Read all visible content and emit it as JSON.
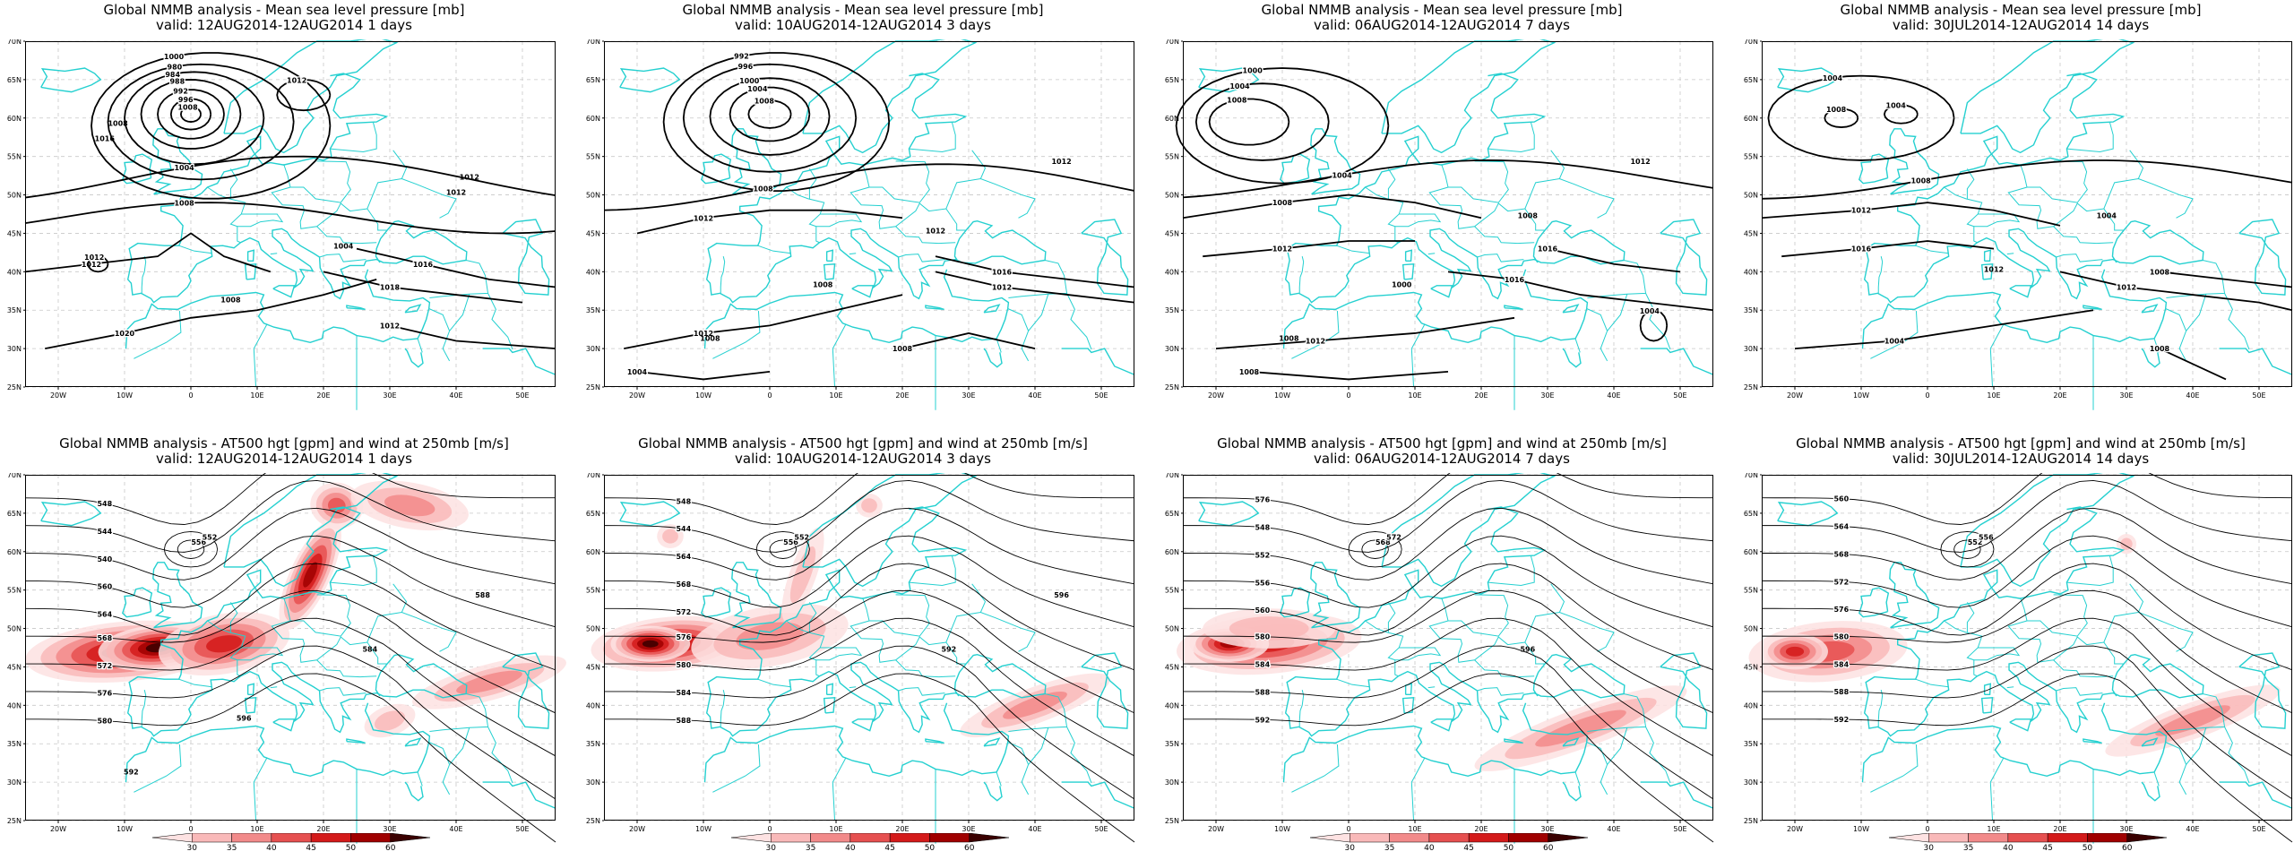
{
  "panels": [
    {
      "title": "Global NMMB analysis - Mean sea level pressure [mb]",
      "subtitle": "valid: 12AUG2014-12AUG2014   1 days",
      "contour_labels": [
        "1008",
        "996",
        "992",
        "988",
        "984",
        "980",
        "1000",
        "1004",
        "1008",
        "1012",
        "1016",
        "1018",
        "1020",
        "1012",
        "1012",
        "1012",
        "1012",
        "1008",
        "1008",
        "1004",
        "1012",
        "1016"
      ]
    },
    {
      "title": "Global NMMB analysis - Mean sea level pressure [mb]",
      "subtitle": "valid: 10AUG2014-12AUG2014   3 days",
      "contour_labels": [
        "1008",
        "1004",
        "1000",
        "996",
        "992",
        "1008",
        "1012",
        "1016",
        "1012",
        "1012",
        "1008",
        "1004",
        "1012",
        "1008",
        "1008",
        "1012"
      ]
    },
    {
      "title": "Global NMMB analysis - Mean sea level pressure [mb]",
      "subtitle": "valid: 06AUG2014-12AUG2014   7 days",
      "contour_labels": [
        "1008",
        "1004",
        "1000",
        "1004",
        "1008",
        "1012",
        "1016",
        "1016",
        "1012",
        "1008",
        "1004",
        "1008",
        "1012",
        "1008",
        "1000"
      ]
    },
    {
      "title": "Global NMMB analysis - Mean sea level pressure [mb]",
      "subtitle": "valid: 30JUL2014-12AUG2014   14 days",
      "contour_labels": [
        "1008",
        "1004",
        "1004",
        "1008",
        "1012",
        "1016",
        "1012",
        "1008",
        "1004",
        "1008",
        "1012",
        "1004"
      ]
    },
    {
      "title": "Global NMMB analysis - AT500 hgt [gpm] and wind at 250mb [m/s]",
      "subtitle": "valid: 12AUG2014-12AUG2014   1 days",
      "contour_labels": [
        "556",
        "552",
        "548",
        "544",
        "540",
        "560",
        "564",
        "568",
        "572",
        "576",
        "580",
        "584",
        "588",
        "592",
        "596"
      ]
    },
    {
      "title": "Global NMMB analysis - AT500 hgt [gpm] and wind at 250mb [m/s]",
      "subtitle": "valid: 10AUG2014-12AUG2014   3 days",
      "contour_labels": [
        "556",
        "552",
        "548",
        "544",
        "564",
        "568",
        "572",
        "576",
        "580",
        "584",
        "588",
        "592",
        "596"
      ]
    },
    {
      "title": "Global NMMB analysis - AT500 hgt [gpm] and wind at 250mb [m/s]",
      "subtitle": "valid: 06AUG2014-12AUG2014   7 days",
      "contour_labels": [
        "568",
        "572",
        "576",
        "548",
        "552",
        "556",
        "560",
        "580",
        "584",
        "588",
        "592",
        "596"
      ]
    },
    {
      "title": "Global NMMB analysis - AT500 hgt [gpm] and wind at 250mb [m/s]",
      "subtitle": "valid: 30JUL2014-12AUG2014   14 days",
      "contour_labels": [
        "552",
        "556",
        "560",
        "564",
        "568",
        "572",
        "576",
        "580",
        "584",
        "588",
        "592"
      ]
    }
  ],
  "axes": {
    "lon_labels": [
      "20W",
      "10W",
      "0",
      "10E",
      "20E",
      "30E",
      "40E",
      "50E"
    ],
    "lat_labels": [
      "70N",
      "65N",
      "60N",
      "55N",
      "50N",
      "45N",
      "40N",
      "35N",
      "30N",
      "25N"
    ]
  },
  "colorbar": {
    "ticks": [
      "30",
      "35",
      "40",
      "45",
      "50",
      "60"
    ],
    "colors": [
      "#fde2e2",
      "#f9b9b9",
      "#f28a8a",
      "#e65050",
      "#d41a1a",
      "#a00000",
      "#3a0000"
    ]
  },
  "colors": {
    "coastline": "#25d0d0",
    "contour": "#000000",
    "grid": "#c8c8c8"
  }
}
